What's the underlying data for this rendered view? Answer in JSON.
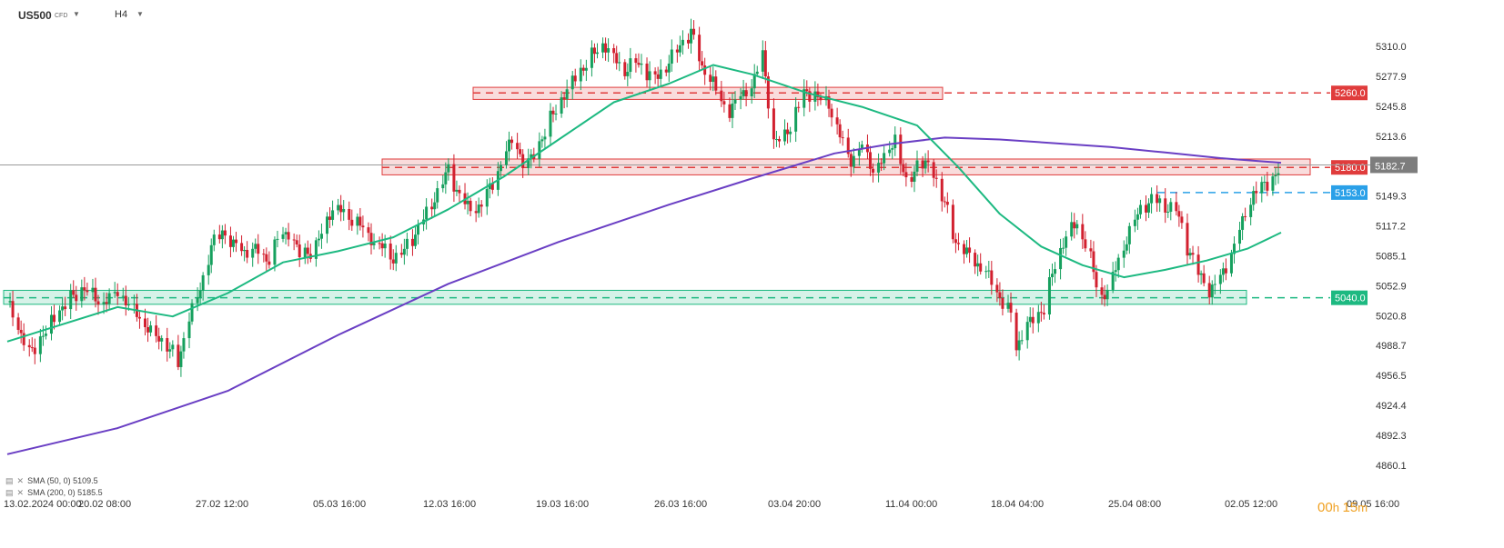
{
  "header": {
    "symbol": "US500",
    "instrument_type": "CFD",
    "timeframe": "H4"
  },
  "indicators": [
    {
      "label": "SMA (50, 0)",
      "value": "5109.5",
      "color": "#1db981"
    },
    {
      "label": "SMA (200, 0)",
      "value": "5185.5",
      "color": "#6a3fc4"
    }
  ],
  "timer": {
    "hours": "00",
    "h_unit": "h",
    "minutes": "15",
    "m_unit": "m"
  },
  "chart_data": {
    "type": "candlestick",
    "y_ticks": [
      "5310.0",
      "5277.9",
      "5245.8",
      "5213.6",
      "5181.4",
      "5149.3",
      "5117.2",
      "5085.1",
      "5052.9",
      "5020.8",
      "4988.7",
      "4956.5",
      "4924.4",
      "4892.3",
      "4860.1"
    ],
    "y_range": [
      4860.1,
      5310.0
    ],
    "x_ticks": [
      "13.02.2024 00:00",
      "20.02 08:00",
      "27.02 12:00",
      "05.03 16:00",
      "12.03 16:00",
      "19.03 16:00",
      "26.03 16:00",
      "03.04 20:00",
      "11.04 00:00",
      "18.04 04:00",
      "25.04 08:00",
      "02.05 12:00",
      "09.05 16:00"
    ],
    "last_price": {
      "value": 5182.7,
      "label": "5182.7"
    },
    "levels": [
      {
        "value": 5260.0,
        "label": "5260.0",
        "color": "#e03c3c",
        "zone": [
          5253.0,
          5266.0
        ],
        "zone_start": "12.03 16:00"
      },
      {
        "value": 5180.0,
        "label": "5180.0",
        "color": "#e03c3c",
        "zone": [
          5172.0,
          5189.0
        ],
        "zone_start": "05.03 16:00"
      },
      {
        "value": 5153.0,
        "label": "5153.0",
        "color": "#2aa0e8",
        "line_start": "25.04 08:00"
      },
      {
        "value": 5040.0,
        "label": "5040.0",
        "color": "#1db981",
        "zone": [
          5033.0,
          5048.0
        ],
        "zone_start": "13.02.2024 00:00"
      }
    ],
    "close_path": [
      [
        0,
        5035
      ],
      [
        8,
        4978
      ],
      [
        14,
        5005
      ],
      [
        20,
        5030
      ],
      [
        28,
        5052
      ],
      [
        34,
        5035
      ],
      [
        40,
        5048
      ],
      [
        46,
        5028
      ],
      [
        52,
        5005
      ],
      [
        58,
        4990
      ],
      [
        62,
        4970
      ],
      [
        66,
        5020
      ],
      [
        70,
        5050
      ],
      [
        74,
        5095
      ],
      [
        78,
        5110
      ],
      [
        82,
        5095
      ],
      [
        86,
        5088
      ],
      [
        90,
        5090
      ],
      [
        94,
        5080
      ],
      [
        98,
        5100
      ],
      [
        102,
        5110
      ],
      [
        106,
        5085
      ],
      [
        112,
        5095
      ],
      [
        118,
        5140
      ],
      [
        122,
        5132
      ],
      [
        126,
        5125
      ],
      [
        130,
        5112
      ],
      [
        134,
        5100
      ],
      [
        140,
        5085
      ],
      [
        144,
        5090
      ],
      [
        148,
        5110
      ],
      [
        152,
        5130
      ],
      [
        156,
        5155
      ],
      [
        160,
        5175
      ],
      [
        164,
        5150
      ],
      [
        168,
        5130
      ],
      [
        172,
        5140
      ],
      [
        176,
        5160
      ],
      [
        180,
        5190
      ],
      [
        184,
        5210
      ],
      [
        188,
        5175
      ],
      [
        192,
        5200
      ],
      [
        196,
        5225
      ],
      [
        200,
        5250
      ],
      [
        204,
        5270
      ],
      [
        208,
        5285
      ],
      [
        212,
        5300
      ],
      [
        216,
        5315
      ],
      [
        220,
        5300
      ],
      [
        224,
        5285
      ],
      [
        228,
        5295
      ],
      [
        232,
        5282
      ],
      [
        236,
        5278
      ],
      [
        240,
        5295
      ],
      [
        244,
        5310
      ],
      [
        248,
        5325
      ],
      [
        252,
        5285
      ],
      [
        256,
        5270
      ],
      [
        258,
        5250
      ],
      [
        262,
        5240
      ],
      [
        266,
        5255
      ],
      [
        270,
        5265
      ],
      [
        274,
        5300
      ],
      [
        278,
        5205
      ],
      [
        282,
        5215
      ],
      [
        286,
        5240
      ],
      [
        290,
        5262
      ],
      [
        294,
        5255
      ],
      [
        298,
        5250
      ],
      [
        302,
        5215
      ],
      [
        306,
        5190
      ],
      [
        310,
        5205
      ],
      [
        314,
        5180
      ],
      [
        318,
        5190
      ],
      [
        322,
        5215
      ],
      [
        326,
        5160
      ],
      [
        330,
        5185
      ],
      [
        336,
        5175
      ],
      [
        340,
        5140
      ],
      [
        344,
        5100
      ],
      [
        348,
        5085
      ],
      [
        352,
        5075
      ],
      [
        356,
        5060
      ],
      [
        360,
        5040
      ],
      [
        364,
        5020
      ],
      [
        366,
        4985
      ],
      [
        368,
        5000
      ],
      [
        372,
        5015
      ],
      [
        376,
        5030
      ],
      [
        380,
        5075
      ],
      [
        384,
        5110
      ],
      [
        388,
        5120
      ],
      [
        392,
        5095
      ],
      [
        396,
        5040
      ],
      [
        400,
        5055
      ],
      [
        404,
        5090
      ],
      [
        408,
        5120
      ],
      [
        412,
        5140
      ],
      [
        416,
        5145
      ],
      [
        420,
        5140
      ],
      [
        424,
        5135
      ],
      [
        428,
        5095
      ],
      [
        432,
        5065
      ],
      [
        436,
        5045
      ],
      [
        440,
        5060
      ],
      [
        444,
        5085
      ],
      [
        448,
        5120
      ],
      [
        452,
        5150
      ],
      [
        456,
        5160
      ],
      [
        460,
        5170
      ],
      [
        462,
        5183
      ]
    ],
    "sma50": [
      [
        0,
        4993
      ],
      [
        40,
        5030
      ],
      [
        60,
        5020
      ],
      [
        80,
        5045
      ],
      [
        100,
        5078
      ],
      [
        120,
        5090
      ],
      [
        140,
        5105
      ],
      [
        160,
        5135
      ],
      [
        180,
        5170
      ],
      [
        200,
        5210
      ],
      [
        220,
        5250
      ],
      [
        240,
        5270
      ],
      [
        256,
        5290
      ],
      [
        270,
        5280
      ],
      [
        290,
        5260
      ],
      [
        310,
        5245
      ],
      [
        330,
        5225
      ],
      [
        345,
        5180
      ],
      [
        360,
        5130
      ],
      [
        375,
        5095
      ],
      [
        390,
        5075
      ],
      [
        405,
        5062
      ],
      [
        420,
        5070
      ],
      [
        435,
        5080
      ],
      [
        450,
        5093
      ],
      [
        462,
        5110
      ]
    ],
    "sma200": [
      [
        0,
        4872
      ],
      [
        40,
        4900
      ],
      [
        80,
        4940
      ],
      [
        120,
        5000
      ],
      [
        160,
        5055
      ],
      [
        200,
        5100
      ],
      [
        240,
        5140
      ],
      [
        270,
        5168
      ],
      [
        300,
        5195
      ],
      [
        320,
        5205
      ],
      [
        340,
        5212
      ],
      [
        360,
        5210
      ],
      [
        380,
        5206
      ],
      [
        400,
        5202
      ],
      [
        420,
        5196
      ],
      [
        440,
        5190
      ],
      [
        462,
        5185
      ]
    ]
  }
}
